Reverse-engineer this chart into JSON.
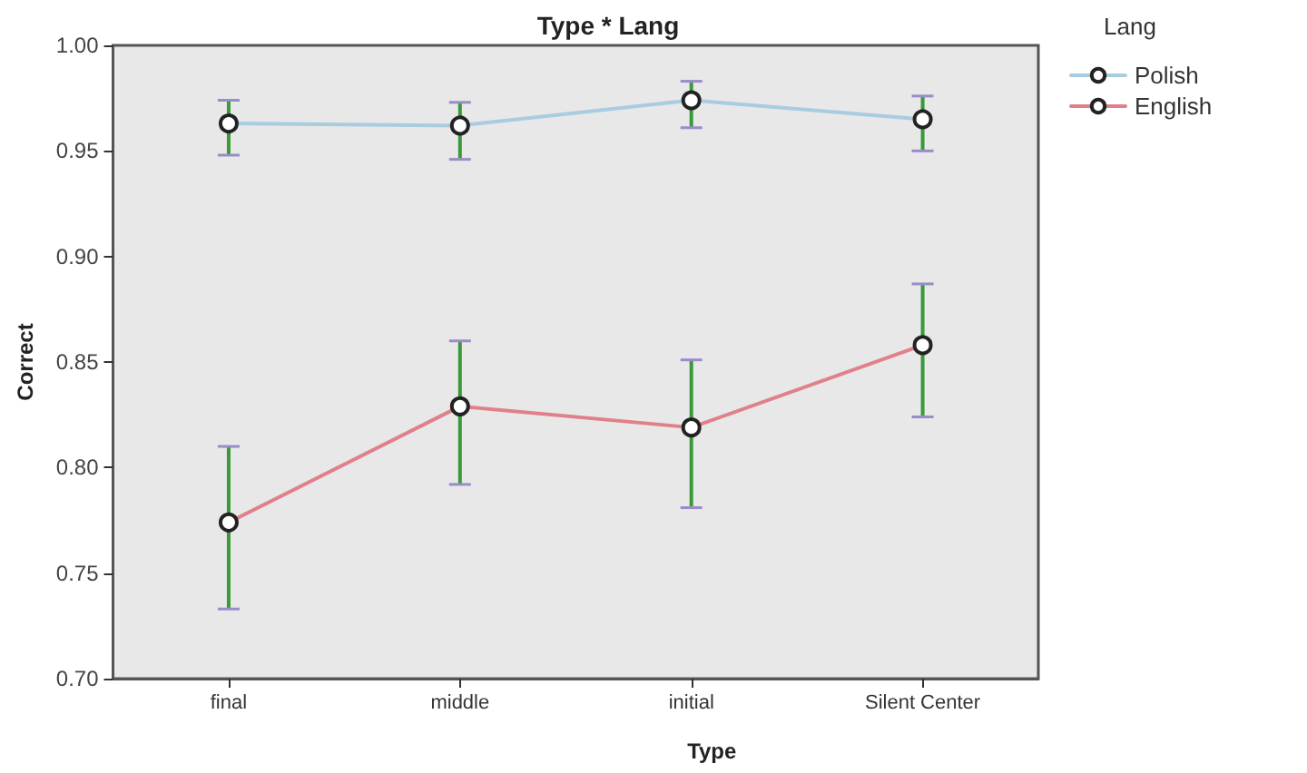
{
  "chart_data": {
    "type": "line",
    "title": "Type * Lang",
    "xlabel": "Type",
    "ylabel": "Correct",
    "legend_title": "Lang",
    "categories": [
      "final",
      "middle",
      "initial",
      "Silent Center"
    ],
    "series": [
      {
        "name": "Polish",
        "color": "#a8cce0",
        "values": [
          0.963,
          0.962,
          0.974,
          0.965
        ],
        "errors": [
          [
            0.948,
            0.974
          ],
          [
            0.946,
            0.973
          ],
          [
            0.961,
            0.983
          ],
          [
            0.95,
            0.976
          ]
        ]
      },
      {
        "name": "English",
        "color": "#e0808a",
        "values": [
          0.774,
          0.829,
          0.819,
          0.858
        ],
        "errors": [
          [
            0.733,
            0.81
          ],
          [
            0.792,
            0.86
          ],
          [
            0.781,
            0.851
          ],
          [
            0.824,
            0.887
          ]
        ]
      }
    ],
    "ylim": [
      0.7,
      1.0
    ],
    "yticks": [
      {
        "value": 0.7,
        "label": "0.70"
      },
      0.75,
      {
        "value": 0.8,
        "label": "0.80"
      },
      0.85,
      {
        "value": 0.9,
        "label": "0.90"
      },
      0.95,
      {
        "value": 1,
        "label": "1.00"
      }
    ],
    "legend": "top right",
    "marker": "circle",
    "line_style": "solid",
    "grid": false
  }
}
